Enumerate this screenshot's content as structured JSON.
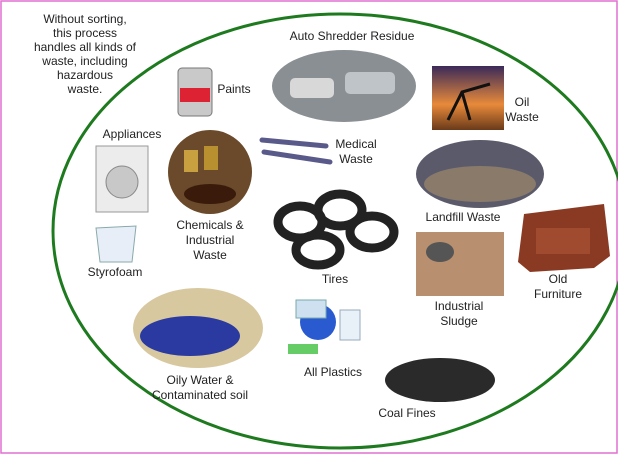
{
  "caption": {
    "lines": [
      "Without sorting,",
      "this process",
      "handles all kinds of",
      "waste, including",
      "hazardous",
      "waste."
    ]
  },
  "items": [
    {
      "label": [
        "Auto Shredder Residue"
      ]
    },
    {
      "label": [
        "Paints"
      ]
    },
    {
      "label": [
        "Oil",
        "Waste"
      ]
    },
    {
      "label": [
        "Appliances"
      ]
    },
    {
      "label": [
        "Medical",
        "Waste"
      ]
    },
    {
      "label": [
        "Chemicals &",
        "Industrial",
        "Waste"
      ]
    },
    {
      "label": [
        "Landfill Waste"
      ]
    },
    {
      "label": [
        "Styrofoam"
      ]
    },
    {
      "label": [
        "Tires"
      ]
    },
    {
      "label": [
        "Industrial",
        "Sludge"
      ]
    },
    {
      "label": [
        "Old",
        "Furniture"
      ]
    },
    {
      "label": [
        "Oily Water &",
        "Contaminated soil"
      ]
    },
    {
      "label": [
        "All Plastics"
      ]
    },
    {
      "label": [
        "Coal Fines"
      ]
    }
  ]
}
